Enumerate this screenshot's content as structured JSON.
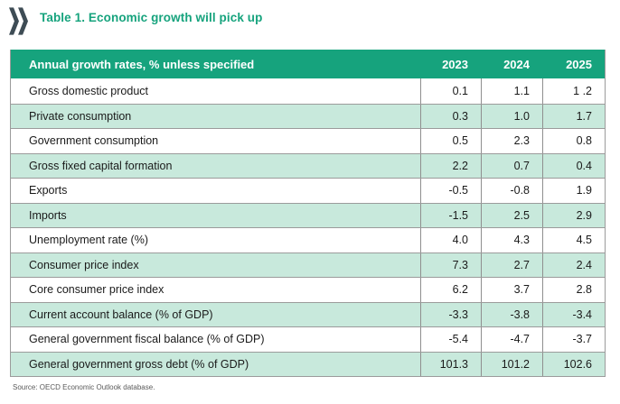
{
  "page": {
    "title": "Table 1. Economic growth will pick up",
    "source_note": "Source: OECD Economic Outlook database."
  },
  "icons": {
    "logo": "oecd-double-chevron-icon"
  },
  "colors": {
    "accent_teal": "#16A37D",
    "row_stripe_green": "#C8E9DC",
    "chevron_dark": "#3E4C55",
    "border_gray": "#9B9B9B",
    "source_text_gray": "#5A5A5A"
  },
  "table": {
    "header": {
      "label": "Annual growth rates, % unless specified",
      "years": [
        "2023",
        "2024",
        "2025"
      ]
    },
    "rows": [
      {
        "label": "Gross domestic product",
        "values": [
          "0.1",
          "1.1",
          "1 .2"
        ]
      },
      {
        "label": "Private consumption",
        "values": [
          "0.3",
          "1.0",
          "1.7"
        ]
      },
      {
        "label": "Government consumption",
        "values": [
          "0.5",
          "2.3",
          "0.8"
        ]
      },
      {
        "label": "Gross fixed capital formation",
        "values": [
          "2.2",
          "0.7",
          "0.4"
        ]
      },
      {
        "label": "Exports",
        "values": [
          "-0.5",
          "-0.8",
          "1.9"
        ]
      },
      {
        "label": "Imports",
        "values": [
          "-1.5",
          "2.5",
          "2.9"
        ]
      },
      {
        "label": "Unemployment rate (%)",
        "values": [
          "4.0",
          "4.3",
          "4.5"
        ]
      },
      {
        "label": "Consumer price index",
        "values": [
          "7.3",
          "2.7",
          "2.4"
        ]
      },
      {
        "label": "Core consumer price index",
        "values": [
          "6.2",
          "3.7",
          "2.8"
        ]
      },
      {
        "label": "Current account balance (% of GDP)",
        "values": [
          "-3.3",
          "-3.8",
          "-3.4"
        ]
      },
      {
        "label": "General government fiscal balance (% of GDP)",
        "values": [
          "-5.4",
          "-4.7",
          "-3.7"
        ]
      },
      {
        "label": "General government gross debt (% of GDP)",
        "values": [
          "101.3",
          "101.2",
          "102.6"
        ]
      }
    ]
  }
}
